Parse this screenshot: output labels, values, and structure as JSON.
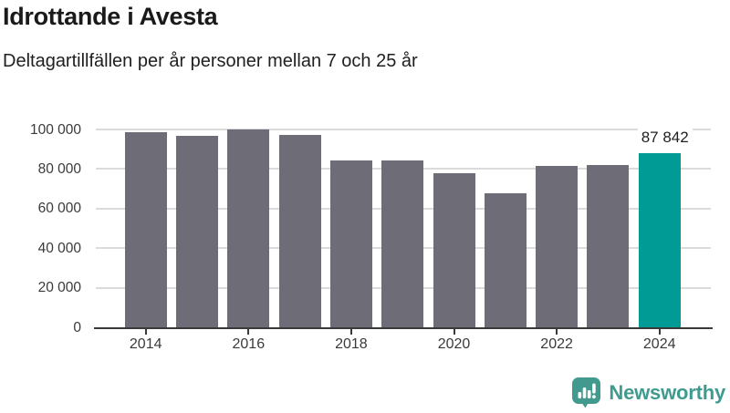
{
  "header": {
    "title": "Idrottande i Avesta",
    "subtitle": "Deltagartillfällen per år personer mellan 7 och 25 år"
  },
  "chart_data": {
    "type": "bar",
    "categories": [
      "2014",
      "2015",
      "2016",
      "2017",
      "2018",
      "2019",
      "2020",
      "2021",
      "2022",
      "2023",
      "2024"
    ],
    "values": [
      98400,
      97000,
      99900,
      97100,
      84200,
      84400,
      78100,
      67800,
      81600,
      82200,
      87842
    ],
    "title": "Idrottande i Avesta",
    "subtitle": "Deltagartillfällen per år personer mellan 7 och 25 år",
    "xlabel": "",
    "ylabel": "",
    "ylim": [
      0,
      100000
    ],
    "grid": true,
    "legend": "none",
    "ytick_values": [
      0,
      20000,
      40000,
      60000,
      80000,
      100000
    ],
    "ytick_labels": [
      "0",
      "20 000",
      "40 000",
      "60 000",
      "80 000",
      "100 000"
    ],
    "xtick_labels": [
      "2014",
      "2016",
      "2018",
      "2020",
      "2022",
      "2024"
    ],
    "highlight_index": 10,
    "highlight_value_label": "87 842",
    "bar_color": "#6e6c76",
    "highlight_color": "#009b94"
  },
  "footer": {
    "logo_icon": "newsworthy-bar-chart-speech-bubble-icon",
    "logo_text": "Newsworthy",
    "logo_color": "#3f9a8f",
    "logo_icon_color": "#42998e"
  }
}
